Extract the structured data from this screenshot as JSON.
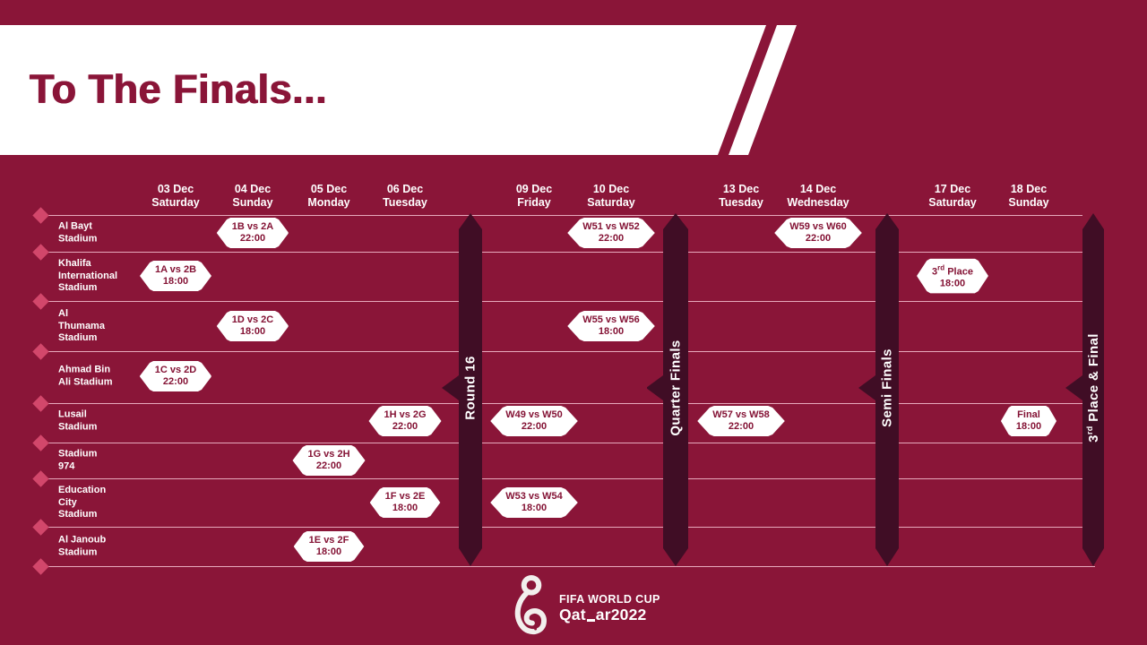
{
  "header": {
    "title": "To The Finals..."
  },
  "dates": [
    {
      "date": "03 Dec",
      "day": "Saturday"
    },
    {
      "date": "04 Dec",
      "day": "Sunday"
    },
    {
      "date": "05 Dec",
      "day": "Monday"
    },
    {
      "date": "06 Dec",
      "day": "Tuesday"
    },
    {
      "date": "09 Dec",
      "day": "Friday"
    },
    {
      "date": "10 Dec",
      "day": "Saturday"
    },
    {
      "date": "13 Dec",
      "day": "Tuesday"
    },
    {
      "date": "14 Dec",
      "day": "Wednesday"
    },
    {
      "date": "17 Dec",
      "day": "Saturday"
    },
    {
      "date": "18 Dec",
      "day": "Sunday"
    }
  ],
  "stadiums": [
    {
      "name": "Al Bayt Stadium",
      "lines": "Al Bayt\nStadium"
    },
    {
      "name": "Khalifa International Stadium",
      "lines": "Khalifa\nInternational\nStadium"
    },
    {
      "name": "Al Thumama Stadium",
      "lines": "Al\nThumama\nStadium"
    },
    {
      "name": "Ahmad Bin Ali Stadium",
      "lines": "Ahmad Bin\nAli Stadium"
    },
    {
      "name": "Lusail Stadium",
      "lines": "Lusail\nStadium"
    },
    {
      "name": "Stadium 974",
      "lines": "Stadium\n974"
    },
    {
      "name": "Education City Stadium",
      "lines": "Education\nCity\nStadium"
    },
    {
      "name": "Al Janoub Stadium",
      "lines": "Al Janoub\nStadium"
    }
  ],
  "stages": [
    {
      "label": "Round 16"
    },
    {
      "label": "Quarter Finals"
    },
    {
      "label": "Semi Finals"
    },
    {
      "label_pre": "3",
      "label_sup": "rd",
      "label_post": " Place & Final"
    }
  ],
  "matches": [
    {
      "teams": "1B vs 2A",
      "time": "22:00",
      "date": "04 Dec",
      "stadium": "Al Bayt Stadium"
    },
    {
      "teams": "W51 vs W52",
      "time": "22:00",
      "date": "10 Dec",
      "stadium": "Al Bayt Stadium"
    },
    {
      "teams": "W59 vs W60",
      "time": "22:00",
      "date": "14 Dec",
      "stadium": "Al Bayt Stadium"
    },
    {
      "teams": "1A vs 2B",
      "time": "18:00",
      "date": "03 Dec",
      "stadium": "Khalifa International Stadium"
    },
    {
      "teams_pre": "3",
      "teams_sup": "rd",
      "teams_post": " Place",
      "time": "18:00",
      "date": "17 Dec",
      "stadium": "Khalifa International Stadium"
    },
    {
      "teams": "1D vs 2C",
      "time": "18:00",
      "date": "04 Dec",
      "stadium": "Al Thumama Stadium"
    },
    {
      "teams": "W55 vs W56",
      "time": "18:00",
      "date": "10 Dec",
      "stadium": "Al Thumama Stadium"
    },
    {
      "teams": "1C vs 2D",
      "time": "22:00",
      "date": "03 Dec",
      "stadium": "Ahmad Bin Ali Stadium"
    },
    {
      "teams": "1H vs 2G",
      "time": "22:00",
      "date": "06 Dec",
      "stadium": "Lusail Stadium"
    },
    {
      "teams": "W49 vs W50",
      "time": "22:00",
      "date": "09 Dec",
      "stadium": "Lusail Stadium"
    },
    {
      "teams": "W57 vs W58",
      "time": "22:00",
      "date": "13 Dec",
      "stadium": "Lusail Stadium"
    },
    {
      "teams": "Final",
      "time": "18:00",
      "date": "18 Dec",
      "stadium": "Lusail Stadium"
    },
    {
      "teams": "1G vs 2H",
      "time": "22:00",
      "date": "05 Dec",
      "stadium": "Stadium 974"
    },
    {
      "teams": "1F vs 2E",
      "time": "18:00",
      "date": "06 Dec",
      "stadium": "Education City Stadium"
    },
    {
      "teams": "W53 vs W54",
      "time": "18:00",
      "date": "09 Dec",
      "stadium": "Education City Stadium"
    },
    {
      "teams": "1E vs 2F",
      "time": "18:00",
      "date": "05 Dec",
      "stadium": "Al Janoub Stadium"
    }
  ],
  "footer": {
    "brand": "FIFA WORLD CUP",
    "wordmark_a": "Qat",
    "wordmark_b": "ar",
    "wordmark_year": "2022"
  },
  "colors": {
    "background": "#8A1538",
    "ribbon": "#400D25",
    "diamond": "#D2476B",
    "gridline": "#ECB1C3",
    "badge_text": "#841335",
    "white": "#FFFFFF"
  }
}
